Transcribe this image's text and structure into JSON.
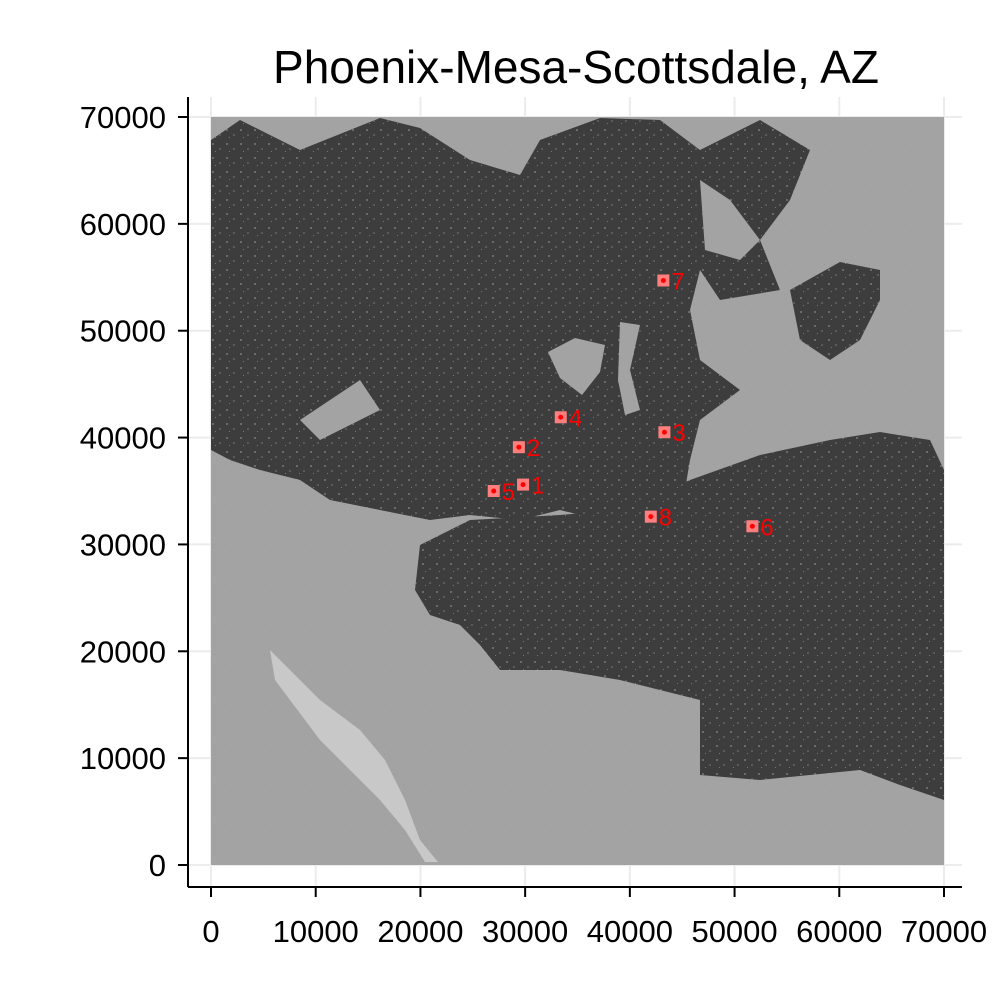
{
  "chart_data": {
    "type": "scatter",
    "title": "Phoenix-Mesa-Scottsdale, AZ",
    "xlabel": "",
    "ylabel": "",
    "xlim": [
      0,
      70000
    ],
    "ylim": [
      0,
      70000
    ],
    "x_ticks": [
      0,
      10000,
      20000,
      30000,
      40000,
      50000,
      60000,
      70000
    ],
    "y_ticks": [
      0,
      10000,
      20000,
      30000,
      40000,
      50000,
      60000,
      70000
    ],
    "grid": true,
    "colors": {
      "background_light": "#a3a3a3",
      "urban_dark": "#3d3d3d",
      "highlight_pale": "#c8c8c8",
      "marker": "#ff7f7f",
      "label": "#ff0000",
      "grid": "#ececec"
    },
    "points": [
      {
        "label": "1",
        "x": 29800,
        "y": 35600
      },
      {
        "label": "2",
        "x": 29400,
        "y": 39100
      },
      {
        "label": "3",
        "x": 43300,
        "y": 40500
      },
      {
        "label": "4",
        "x": 33400,
        "y": 41900
      },
      {
        "label": "5",
        "x": 27000,
        "y": 35000
      },
      {
        "label": "6",
        "x": 51700,
        "y": 31700
      },
      {
        "label": "7",
        "x": 43200,
        "y": 54700
      },
      {
        "label": "8",
        "x": 42000,
        "y": 32600
      }
    ]
  }
}
